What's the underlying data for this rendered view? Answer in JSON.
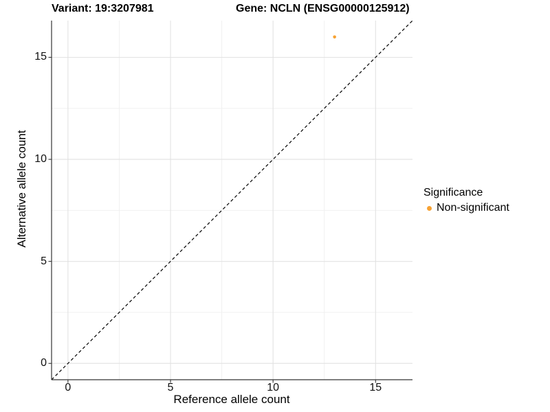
{
  "chart_data": {
    "type": "scatter",
    "titles": {
      "left": "Variant: 19:3207981",
      "right": "Gene: NCLN (ENSG00000125912)"
    },
    "xlabel": "Reference allele count",
    "ylabel": "Alternative allele count",
    "xlim": [
      -0.8,
      16.8
    ],
    "ylim": [
      -0.8,
      16.8
    ],
    "xticks": [
      0,
      5,
      10,
      15
    ],
    "yticks": [
      0,
      5,
      10,
      15
    ],
    "x_minor": [
      2.5,
      7.5,
      12.5
    ],
    "y_minor": [
      2.5,
      7.5,
      12.5
    ],
    "grid": "major+minor",
    "series": [
      {
        "name": "Non-significant",
        "color": "#F7A233",
        "points": [
          {
            "x": 13,
            "y": 16
          }
        ]
      }
    ],
    "reference_line": {
      "kind": "abline",
      "slope": 1,
      "intercept": 0,
      "style": "dashed",
      "color": "#000000"
    },
    "legend": {
      "title": "Significance",
      "position": "right",
      "entries": [
        {
          "label": "Non-significant",
          "color": "#F7A233"
        }
      ]
    }
  },
  "colors": {
    "background": "#FFFFFF",
    "grid_major": "#E2E2E2",
    "grid_minor": "#EFEFEF",
    "axis_line": "#333333",
    "text": "#000000",
    "point": "#F7A233"
  }
}
